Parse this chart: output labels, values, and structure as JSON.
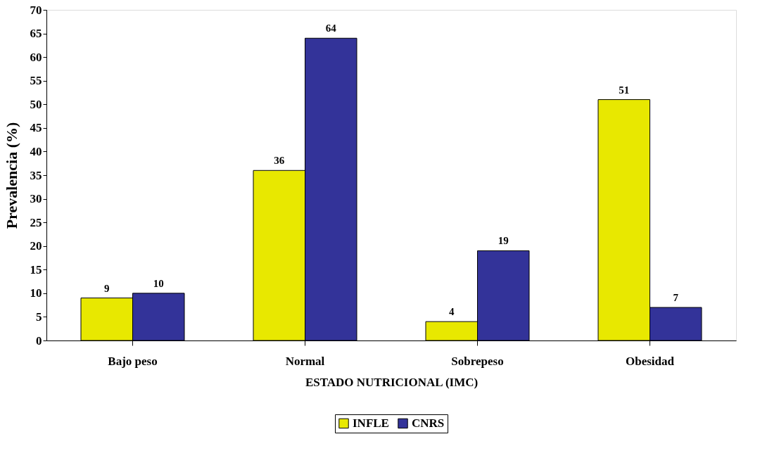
{
  "chart_data": {
    "type": "bar",
    "xlabel": "ESTADO NUTRICIONAL (IMC)",
    "ylabel": "Prevalencia (%)",
    "categories": [
      "Bajo peso",
      "Normal",
      "Sobrepeso",
      "Obesidad"
    ],
    "series": [
      {
        "name": "INFLE",
        "color": "#e8e800",
        "values": [
          9,
          36,
          4,
          51
        ]
      },
      {
        "name": "CNRS",
        "color": "#333399",
        "values": [
          10,
          64,
          19,
          7
        ]
      }
    ],
    "ylim": [
      0,
      70
    ],
    "yticks": [
      0,
      5,
      10,
      15,
      20,
      25,
      30,
      35,
      40,
      45,
      50,
      55,
      60,
      65,
      70
    ],
    "grid": false,
    "legend": "bottom",
    "data_labels": true
  }
}
